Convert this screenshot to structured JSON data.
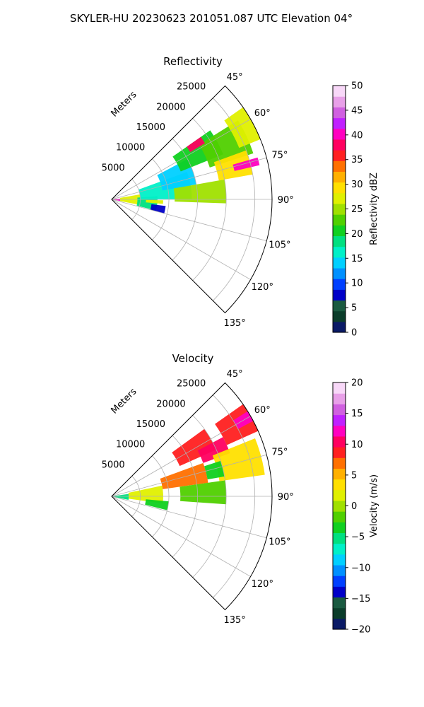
{
  "figure": {
    "suptitle": "SKYLER-HU  20230623  201051.087 UTC Elevation 04°"
  },
  "chart_data": [
    {
      "type": "heatmap",
      "projection": "polar-sector",
      "title": "Reflectivity",
      "theta_range_deg": [
        45,
        135
      ],
      "theta_ticks": [
        "45°",
        "60°",
        "75°",
        "90°",
        "105°",
        "120°",
        "135°"
      ],
      "r_axis_label": "Meters",
      "r_range": [
        0,
        28000
      ],
      "r_ticks": [
        "5000",
        "10000",
        "15000",
        "20000",
        "25000"
      ],
      "grid": true,
      "colorbar": {
        "label": "Reflectivity dBZ",
        "range": [
          0,
          50
        ],
        "ticks": [
          "0",
          "5",
          "10",
          "15",
          "20",
          "25",
          "30",
          "35",
          "40",
          "45",
          "50"
        ],
        "colors": [
          "#0a1a66",
          "#0b3d2a",
          "#1a5a40",
          "#0000c8",
          "#0040ff",
          "#0090ff",
          "#00d0ff",
          "#00f0c8",
          "#00e080",
          "#10d020",
          "#50d000",
          "#a0e000",
          "#e0f000",
          "#ffe000",
          "#ffb000",
          "#ff7000",
          "#ff2020",
          "#ff0060",
          "#ff00c0",
          "#c020ff",
          "#d060e0",
          "#e8a0e8",
          "#f8d8f8"
        ]
      },
      "regions": [
        {
          "r": [
            0,
            1500
          ],
          "theta": [
            85,
            100
          ],
          "value": 40
        },
        {
          "r": [
            1500,
            5000
          ],
          "theta": [
            80,
            101
          ],
          "value": 28
        },
        {
          "r": [
            4500,
            8000
          ],
          "theta": [
            86,
            104
          ],
          "value": 18
        },
        {
          "r": [
            7000,
            9500
          ],
          "theta": [
            97,
            105
          ],
          "value": 8
        },
        {
          "r": [
            5000,
            14000
          ],
          "theta": [
            70,
            90
          ],
          "value": 16
        },
        {
          "r": [
            9000,
            15000
          ],
          "theta": [
            62,
            80
          ],
          "value": 14
        },
        {
          "r": [
            11000,
            20000
          ],
          "theta": [
            80,
            92
          ],
          "value": 24
        },
        {
          "r": [
            13000,
            21000
          ],
          "theta": [
            55,
            68
          ],
          "value": 20
        },
        {
          "r": [
            18000,
            26000
          ],
          "theta": [
            58,
            72
          ],
          "value": 22
        },
        {
          "r": [
            19000,
            25000
          ],
          "theta": [
            70,
            80
          ],
          "value": 30
        },
        {
          "r": [
            22000,
            26500
          ],
          "theta": [
            74,
            77
          ],
          "value": 40
        },
        {
          "r": [
            24000,
            28000
          ],
          "theta": [
            55,
            68
          ],
          "value": 27
        },
        {
          "r": [
            16000,
            19000
          ],
          "theta": [
            55,
            59
          ],
          "value": 38
        },
        {
          "r": [
            6000,
            9000
          ],
          "theta": [
            91,
            95
          ],
          "value": 28
        }
      ]
    },
    {
      "type": "heatmap",
      "projection": "polar-sector",
      "title": "Velocity",
      "theta_range_deg": [
        45,
        135
      ],
      "theta_ticks": [
        "45°",
        "60°",
        "75°",
        "90°",
        "105°",
        "120°",
        "135°"
      ],
      "r_axis_label": "Meters",
      "r_range": [
        0,
        28000
      ],
      "r_ticks": [
        "5000",
        "10000",
        "15000",
        "20000",
        "25000"
      ],
      "grid": true,
      "colorbar": {
        "label": "Velocity (m/s)",
        "range": [
          -20,
          20
        ],
        "ticks": [
          "−20",
          "−15",
          "−10",
          "−5",
          "0",
          "5",
          "10",
          "15",
          "20"
        ],
        "colors": [
          "#0a1a66",
          "#0b3d2a",
          "#1a5a40",
          "#0000c8",
          "#0040ff",
          "#0090ff",
          "#00d0ff",
          "#00f0c8",
          "#00e080",
          "#10d020",
          "#50d000",
          "#a0e000",
          "#e0f000",
          "#ffe000",
          "#ffb000",
          "#ff7000",
          "#ff2020",
          "#ff0060",
          "#ff00c0",
          "#c020ff",
          "#d060e0",
          "#e8a0e8",
          "#f8d8f8"
        ]
      },
      "regions": [
        {
          "r": [
            0,
            3000
          ],
          "theta": [
            82,
            102
          ],
          "value": -5
        },
        {
          "r": [
            3000,
            9000
          ],
          "theta": [
            78,
            98
          ],
          "value": 2
        },
        {
          "r": [
            6000,
            10000
          ],
          "theta": [
            95,
            104
          ],
          "value": -3
        },
        {
          "r": [
            9000,
            17000
          ],
          "theta": [
            70,
            82
          ],
          "value": 7
        },
        {
          "r": [
            12000,
            20000
          ],
          "theta": [
            82,
            94
          ],
          "value": -2
        },
        {
          "r": [
            13000,
            20000
          ],
          "theta": [
            54,
            66
          ],
          "value": 8
        },
        {
          "r": [
            17000,
            22000
          ],
          "theta": [
            62,
            70
          ],
          "value": 10
        },
        {
          "r": [
            19000,
            27000
          ],
          "theta": [
            68,
            82
          ],
          "value": 4
        },
        {
          "r": [
            22000,
            28000
          ],
          "theta": [
            55,
            66
          ],
          "value": 8
        },
        {
          "r": [
            25000,
            28000
          ],
          "theta": [
            58,
            62
          ],
          "value": 12
        },
        {
          "r": [
            17000,
            20000
          ],
          "theta": [
            72,
            80
          ],
          "value": -4
        }
      ]
    }
  ]
}
